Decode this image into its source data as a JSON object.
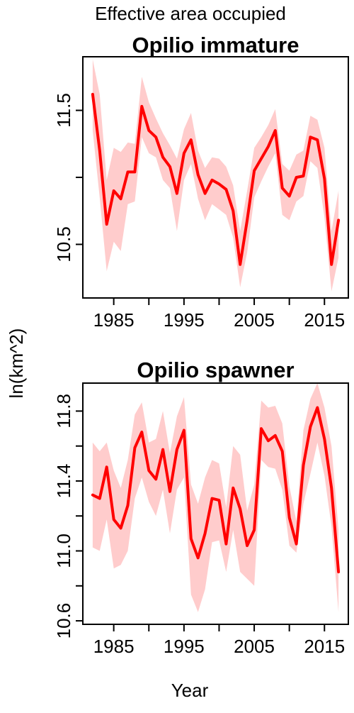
{
  "figure": {
    "title": "Effective area occupied",
    "ylabel": "ln(km^2)",
    "xlabel": "Year"
  },
  "colors": {
    "line": "#ff0000",
    "band": "#ffcccc"
  },
  "chart_data": [
    {
      "type": "line",
      "title": "Opilio immature",
      "xlabel": "Year",
      "ylabel": "ln(km^2)",
      "xlim": [
        1980.6,
        2018.4
      ],
      "ylim": [
        10.1,
        11.9
      ],
      "x_ticks": [
        1985,
        1995,
        2005,
        2015
      ],
      "x_minor_ticks": [
        1990,
        2000,
        2010
      ],
      "y_ticks": [
        10.5,
        11.5
      ],
      "y_minor_ticks": [
        11.0
      ],
      "grid": false,
      "x": [
        1982,
        1983,
        1984,
        1985,
        1986,
        1987,
        1988,
        1989,
        1990,
        1991,
        1992,
        1993,
        1994,
        1995,
        1996,
        1997,
        1998,
        1999,
        2000,
        2001,
        2002,
        2003,
        2004,
        2005,
        2006,
        2007,
        2008,
        2009,
        2010,
        2011,
        2012,
        2013,
        2014,
        2015,
        2016,
        2017
      ],
      "y": [
        11.62,
        11.2,
        10.65,
        10.9,
        10.84,
        11.04,
        11.04,
        11.53,
        11.35,
        11.3,
        11.15,
        11.08,
        10.88,
        11.18,
        11.28,
        11.02,
        10.88,
        10.98,
        10.95,
        10.91,
        10.75,
        10.35,
        10.68,
        11.05,
        11.14,
        11.23,
        11.35,
        10.92,
        10.86,
        11.0,
        11.01,
        11.3,
        11.28,
        10.99,
        10.35,
        10.68
      ],
      "lower": [
        11.35,
        10.85,
        10.3,
        10.52,
        10.45,
        10.8,
        10.82,
        11.3,
        11.18,
        11.15,
        10.98,
        10.92,
        10.6,
        10.98,
        11.1,
        10.84,
        10.68,
        10.8,
        10.76,
        10.72,
        10.55,
        10.18,
        10.44,
        10.85,
        10.97,
        11.08,
        11.18,
        10.72,
        10.68,
        10.82,
        10.86,
        11.12,
        11.07,
        10.7,
        10.15,
        10.4
      ],
      "upper": [
        11.88,
        11.62,
        10.98,
        11.22,
        11.19,
        11.26,
        11.25,
        11.75,
        11.56,
        11.44,
        11.33,
        11.24,
        11.14,
        11.36,
        11.48,
        11.2,
        11.07,
        11.15,
        11.14,
        11.08,
        10.94,
        10.6,
        10.9,
        11.22,
        11.3,
        11.39,
        11.51,
        11.1,
        11.05,
        11.17,
        11.2,
        11.46,
        11.43,
        11.22,
        10.6,
        10.9
      ]
    },
    {
      "type": "line",
      "title": "Opilio spawner",
      "xlabel": "Year",
      "ylabel": "ln(km^2)",
      "xlim": [
        1980.6,
        2018.4
      ],
      "ylim": [
        10.58,
        11.96
      ],
      "x_ticks": [
        1985,
        1995,
        2005,
        2015
      ],
      "x_minor_ticks": [
        1990,
        2000,
        2010
      ],
      "y_ticks": [
        10.6,
        11.0,
        11.4,
        11.8
      ],
      "y_minor_ticks": [
        10.8,
        11.2,
        11.6
      ],
      "grid": false,
      "x": [
        1982,
        1983,
        1984,
        1985,
        1986,
        1987,
        1988,
        1989,
        1990,
        1991,
        1992,
        1993,
        1994,
        1995,
        1996,
        1997,
        1998,
        1999,
        2000,
        2001,
        2002,
        2003,
        2004,
        2005,
        2006,
        2007,
        2008,
        2009,
        2010,
        2011,
        2012,
        2013,
        2014,
        2015,
        2016,
        2017
      ],
      "y": [
        11.32,
        11.3,
        11.48,
        11.18,
        11.13,
        11.26,
        11.59,
        11.68,
        11.46,
        11.41,
        11.58,
        11.34,
        11.58,
        11.69,
        11.07,
        10.96,
        11.1,
        11.3,
        11.29,
        11.04,
        11.36,
        11.24,
        11.03,
        11.12,
        11.7,
        11.63,
        11.66,
        11.57,
        11.19,
        11.04,
        11.49,
        11.71,
        11.82,
        11.64,
        11.36,
        10.88
      ],
      "lower": [
        11.02,
        11.0,
        11.18,
        10.9,
        10.92,
        11.0,
        11.3,
        11.42,
        11.28,
        11.2,
        11.35,
        11.1,
        11.35,
        11.42,
        10.75,
        10.65,
        10.78,
        11.05,
        11.06,
        10.88,
        11.12,
        10.88,
        10.84,
        10.8,
        11.52,
        11.48,
        11.47,
        11.35,
        11.03,
        10.99,
        11.27,
        11.44,
        11.62,
        11.43,
        11.14,
        10.65
      ],
      "upper": [
        11.62,
        11.57,
        11.62,
        11.46,
        11.36,
        11.52,
        11.78,
        11.85,
        11.62,
        11.64,
        11.8,
        11.56,
        11.77,
        11.88,
        11.38,
        11.27,
        11.42,
        11.52,
        11.5,
        11.25,
        11.6,
        11.55,
        11.23,
        11.38,
        11.86,
        11.82,
        11.83,
        11.73,
        11.37,
        11.17,
        11.69,
        11.87,
        11.96,
        11.82,
        11.6,
        11.12
      ]
    }
  ]
}
